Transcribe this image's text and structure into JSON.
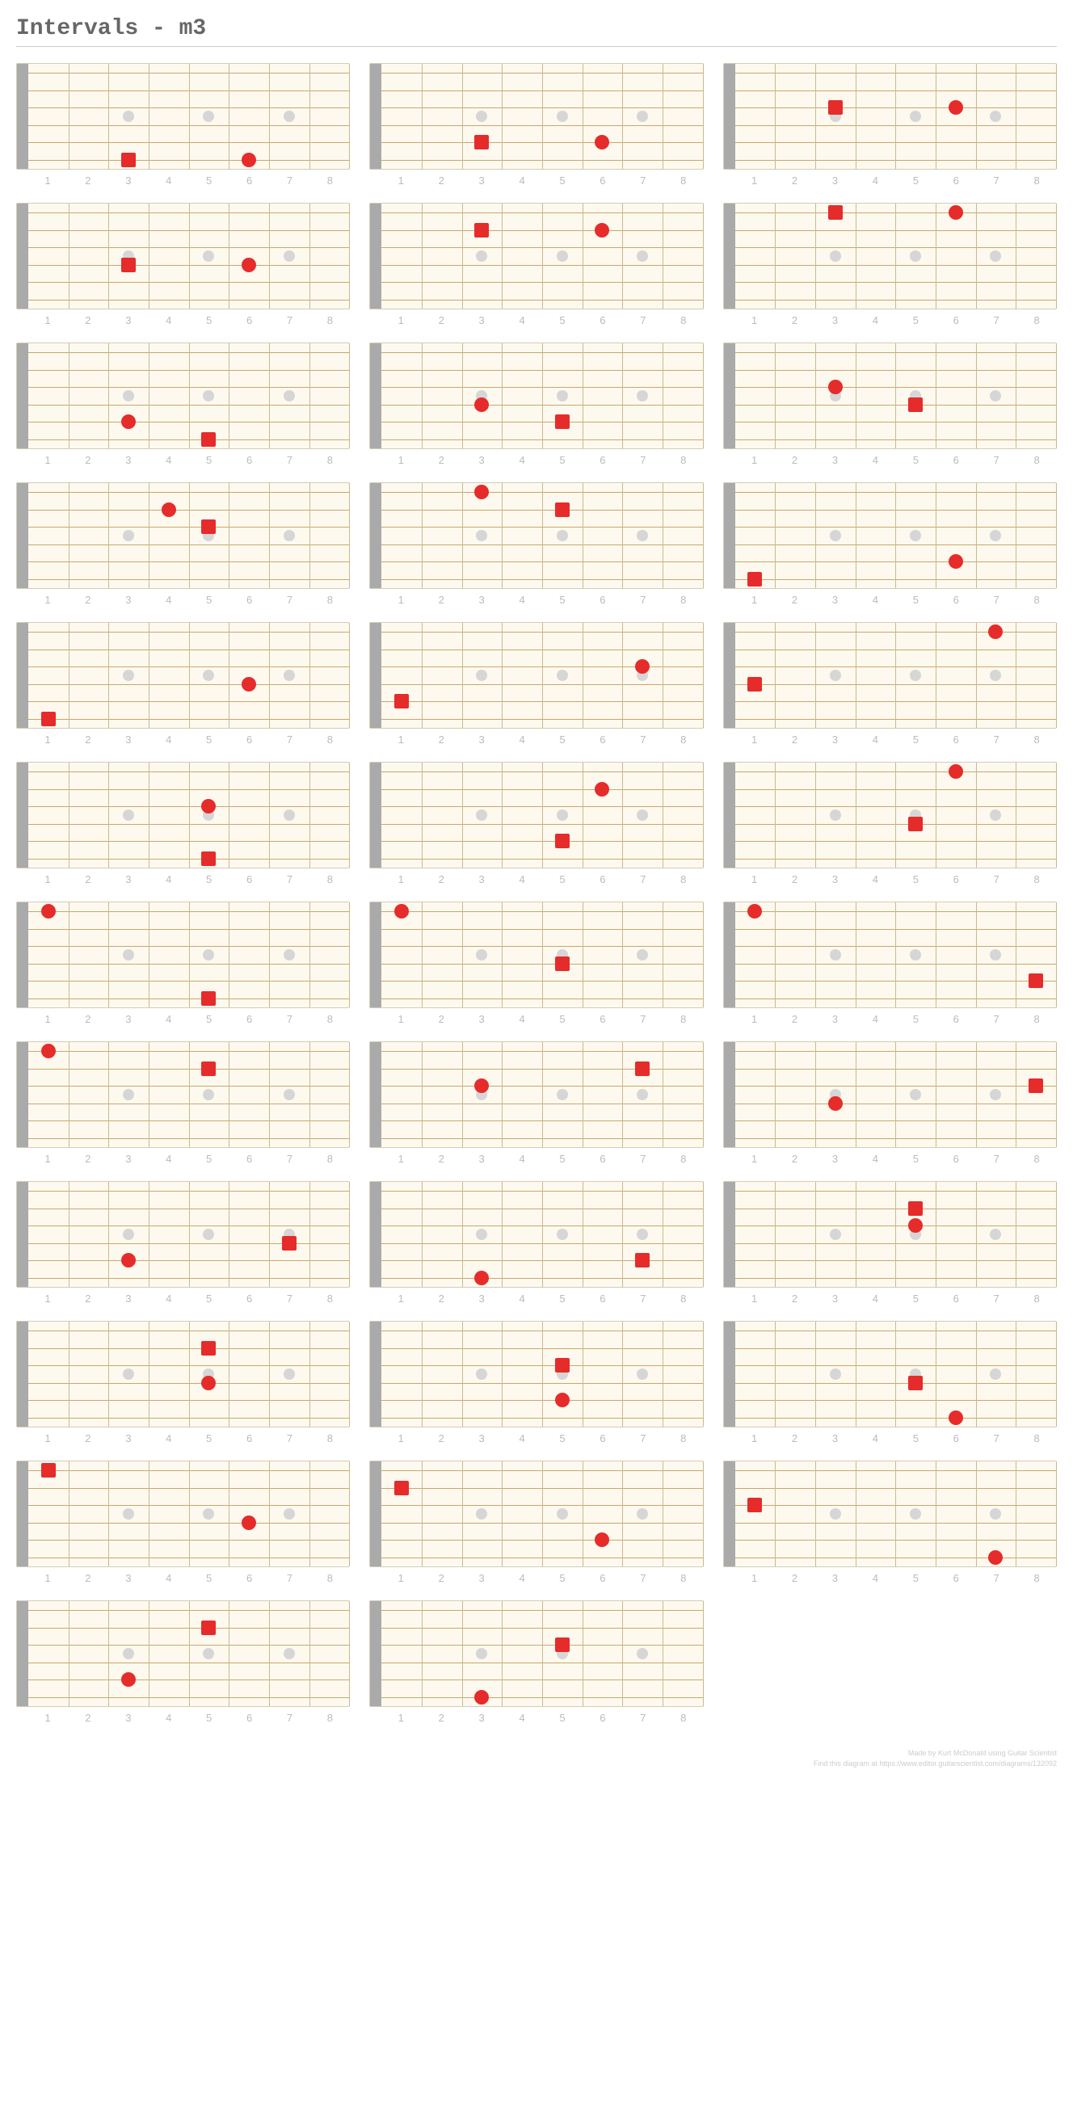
{
  "title": "Intervals - m3",
  "footer": {
    "line1": "Made by Kurt McDonald using Guitar Scientist",
    "line2": "Find this diagram at https://www.editor.guitarscientist.com/diagrams/132092"
  },
  "fretboard_style": {
    "num_strings": 6,
    "num_frets": 8,
    "string_color": "#c9a86a",
    "fret_color": "#c9b98e",
    "bg_color": "#fdf9ef",
    "nut_color": "#aaaaaa",
    "inlay_color": "#d6d6d6",
    "inlay_frets": [
      3,
      5,
      7
    ],
    "inlay_string_pos": 3.5,
    "marker_color": "#e62b2b",
    "fret_labels": [
      "1",
      "2",
      "3",
      "4",
      "5",
      "6",
      "7",
      "8"
    ],
    "label_color": "#bbbbbb",
    "label_fontsize": 13
  },
  "diagrams": [
    {
      "markers": [
        {
          "fret": 3,
          "string": 6,
          "shape": "square"
        },
        {
          "fret": 6,
          "string": 6,
          "shape": "circle"
        }
      ]
    },
    {
      "markers": [
        {
          "fret": 3,
          "string": 5,
          "shape": "square"
        },
        {
          "fret": 6,
          "string": 5,
          "shape": "circle"
        }
      ]
    },
    {
      "markers": [
        {
          "fret": 3,
          "string": 3,
          "shape": "square"
        },
        {
          "fret": 6,
          "string": 3,
          "shape": "circle"
        }
      ]
    },
    {
      "markers": [
        {
          "fret": 3,
          "string": 4,
          "shape": "square"
        },
        {
          "fret": 6,
          "string": 4,
          "shape": "circle"
        }
      ]
    },
    {
      "markers": [
        {
          "fret": 3,
          "string": 2,
          "shape": "square"
        },
        {
          "fret": 6,
          "string": 2,
          "shape": "circle"
        }
      ]
    },
    {
      "markers": [
        {
          "fret": 3,
          "string": 1,
          "shape": "square"
        },
        {
          "fret": 6,
          "string": 1,
          "shape": "circle"
        }
      ]
    },
    {
      "markers": [
        {
          "fret": 3,
          "string": 5,
          "shape": "circle"
        },
        {
          "fret": 5,
          "string": 6,
          "shape": "square"
        }
      ]
    },
    {
      "markers": [
        {
          "fret": 3,
          "string": 4,
          "shape": "circle"
        },
        {
          "fret": 5,
          "string": 5,
          "shape": "square"
        }
      ]
    },
    {
      "markers": [
        {
          "fret": 3,
          "string": 3,
          "shape": "circle"
        },
        {
          "fret": 5,
          "string": 4,
          "shape": "square"
        }
      ]
    },
    {
      "markers": [
        {
          "fret": 4,
          "string": 2,
          "shape": "circle"
        },
        {
          "fret": 5,
          "string": 3,
          "shape": "square"
        }
      ]
    },
    {
      "markers": [
        {
          "fret": 3,
          "string": 1,
          "shape": "circle"
        },
        {
          "fret": 5,
          "string": 2,
          "shape": "square"
        }
      ]
    },
    {
      "markers": [
        {
          "fret": 1,
          "string": 6,
          "shape": "square"
        },
        {
          "fret": 6,
          "string": 5,
          "shape": "circle"
        }
      ]
    },
    {
      "markers": [
        {
          "fret": 1,
          "string": 6,
          "shape": "square"
        },
        {
          "fret": 6,
          "string": 4,
          "shape": "circle"
        }
      ]
    },
    {
      "markers": [
        {
          "fret": 1,
          "string": 5,
          "shape": "square"
        },
        {
          "fret": 7,
          "string": 3,
          "shape": "circle"
        }
      ]
    },
    {
      "markers": [
        {
          "fret": 1,
          "string": 4,
          "shape": "square"
        },
        {
          "fret": 7,
          "string": 1,
          "shape": "circle"
        }
      ]
    },
    {
      "markers": [
        {
          "fret": 5,
          "string": 3,
          "shape": "circle"
        },
        {
          "fret": 5,
          "string": 6,
          "shape": "square"
        }
      ]
    },
    {
      "markers": [
        {
          "fret": 5,
          "string": 5,
          "shape": "square"
        },
        {
          "fret": 6,
          "string": 2,
          "shape": "circle"
        }
      ]
    },
    {
      "markers": [
        {
          "fret": 5,
          "string": 4,
          "shape": "square"
        },
        {
          "fret": 6,
          "string": 1,
          "shape": "circle"
        }
      ]
    },
    {
      "markers": [
        {
          "fret": 1,
          "string": 1,
          "shape": "circle"
        },
        {
          "fret": 5,
          "string": 6,
          "shape": "square"
        }
      ]
    },
    {
      "markers": [
        {
          "fret": 1,
          "string": 1,
          "shape": "circle"
        },
        {
          "fret": 5,
          "string": 4,
          "shape": "square"
        }
      ]
    },
    {
      "markers": [
        {
          "fret": 1,
          "string": 1,
          "shape": "circle"
        },
        {
          "fret": 8,
          "string": 5,
          "shape": "square"
        }
      ]
    },
    {
      "markers": [
        {
          "fret": 1,
          "string": 1,
          "shape": "circle"
        },
        {
          "fret": 5,
          "string": 2,
          "shape": "square"
        }
      ]
    },
    {
      "markers": [
        {
          "fret": 3,
          "string": 3,
          "shape": "circle"
        },
        {
          "fret": 7,
          "string": 2,
          "shape": "square"
        }
      ]
    },
    {
      "markers": [
        {
          "fret": 3,
          "string": 4,
          "shape": "circle"
        },
        {
          "fret": 8,
          "string": 3,
          "shape": "square"
        }
      ]
    },
    {
      "markers": [
        {
          "fret": 3,
          "string": 5,
          "shape": "circle"
        },
        {
          "fret": 7,
          "string": 4,
          "shape": "square"
        }
      ]
    },
    {
      "markers": [
        {
          "fret": 3,
          "string": 6,
          "shape": "circle"
        },
        {
          "fret": 7,
          "string": 5,
          "shape": "square"
        }
      ]
    },
    {
      "markers": [
        {
          "fret": 5,
          "string": 3,
          "shape": "circle"
        },
        {
          "fret": 5,
          "string": 2,
          "shape": "square"
        }
      ]
    },
    {
      "markers": [
        {
          "fret": 5,
          "string": 4,
          "shape": "circle"
        },
        {
          "fret": 5,
          "string": 2,
          "shape": "square"
        }
      ]
    },
    {
      "markers": [
        {
          "fret": 5,
          "string": 5,
          "shape": "circle"
        },
        {
          "fret": 5,
          "string": 3,
          "shape": "square"
        }
      ]
    },
    {
      "markers": [
        {
          "fret": 5,
          "string": 4,
          "shape": "square"
        },
        {
          "fret": 6,
          "string": 6,
          "shape": "circle"
        }
      ]
    },
    {
      "markers": [
        {
          "fret": 1,
          "string": 1,
          "shape": "square"
        },
        {
          "fret": 6,
          "string": 4,
          "shape": "circle"
        }
      ]
    },
    {
      "markers": [
        {
          "fret": 1,
          "string": 2,
          "shape": "square"
        },
        {
          "fret": 6,
          "string": 5,
          "shape": "circle"
        }
      ]
    },
    {
      "markers": [
        {
          "fret": 1,
          "string": 3,
          "shape": "square"
        },
        {
          "fret": 7,
          "string": 6,
          "shape": "circle"
        }
      ]
    },
    {
      "markers": [
        {
          "fret": 3,
          "string": 5,
          "shape": "circle"
        },
        {
          "fret": 5,
          "string": 2,
          "shape": "square"
        }
      ]
    },
    {
      "markers": [
        {
          "fret": 3,
          "string": 6,
          "shape": "circle"
        },
        {
          "fret": 5,
          "string": 3,
          "shape": "square"
        }
      ]
    }
  ]
}
